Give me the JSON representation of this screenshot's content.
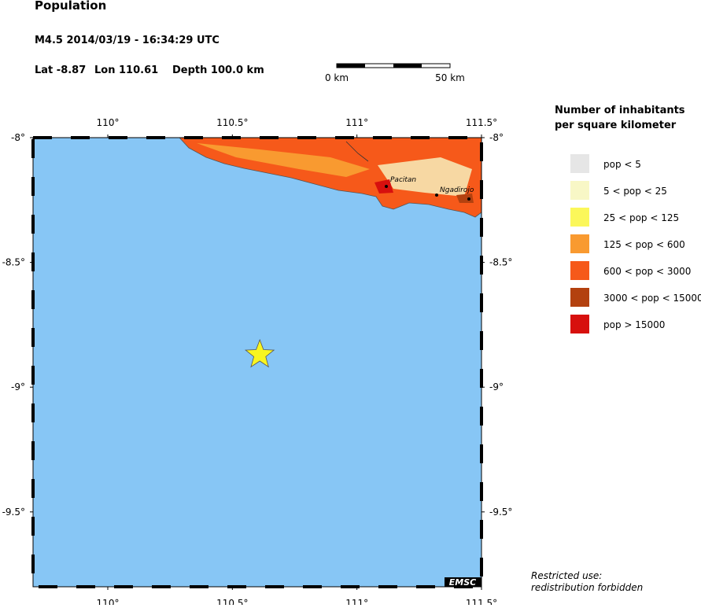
{
  "header": {
    "title": "Population",
    "event": "M4.5  2014/03/19 - 16:34:29 UTC",
    "lat": {
      "label": "Lat -8.87",
      "value": -8.87
    },
    "lon": {
      "label": "Lon 110.61",
      "value": 110.61
    },
    "depth": "Depth 100.0 km"
  },
  "scale": {
    "start": "0 km",
    "end": "50 km"
  },
  "map": {
    "xlim": [
      109.7,
      111.5
    ],
    "ylim": [
      -8,
      -9.8
    ],
    "xticks": [
      {
        "value": 110,
        "label": "110°"
      },
      {
        "value": 110.5,
        "label": "110.5°"
      },
      {
        "value": 111,
        "label": "111°"
      },
      {
        "value": 111.5,
        "label": "111.5°"
      }
    ],
    "yticks": [
      {
        "value": -8,
        "label": "-8°"
      },
      {
        "value": -8.5,
        "label": "-8.5°"
      },
      {
        "value": -9,
        "label": "-9°"
      },
      {
        "value": -9.5,
        "label": "-9.5°"
      }
    ],
    "towns": [
      {
        "name": "Pacitan"
      },
      {
        "name": "Ngadirojo"
      }
    ],
    "badge": "EMSC"
  },
  "legend": {
    "title": [
      "Number of inhabitants",
      "per square kilometer"
    ],
    "items": [
      {
        "label": "pop < 5",
        "color": "#e6e6e6"
      },
      {
        "label": "5 < pop < 25",
        "color": "#f8f7c6"
      },
      {
        "label": "25 < pop < 125",
        "color": "#fbf75a"
      },
      {
        "label": "125 < pop < 600",
        "color": "#f99a30"
      },
      {
        "label": "600 < pop < 3000",
        "color": "#f6591a"
      },
      {
        "label": "3000 < pop < 15000",
        "color": "#b3410f"
      },
      {
        "label": "pop > 15000",
        "color": "#d7100e"
      }
    ]
  },
  "footer": [
    "Restricted use:",
    "redistribution forbidden"
  ]
}
